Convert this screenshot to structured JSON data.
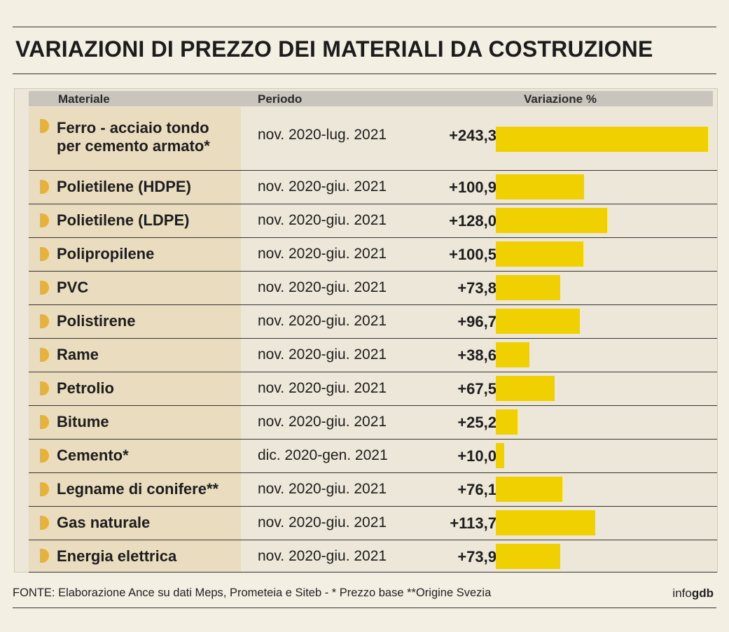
{
  "title": "VARIAZIONI DI PREZZO DEI MATERIALI DA COSTRUZIONE",
  "headers": {
    "material": "Materiale",
    "period": "Periodo",
    "variation": "Variazione %"
  },
  "colors": {
    "bar": "#f1d000",
    "bullet": "#e6b23a",
    "material_col": "#eadcbe",
    "header": "#c9c5bd"
  },
  "chart_data": {
    "type": "bar",
    "title": "VARIAZIONI DI PREZZO DEI MATERIALI DA COSTRUZIONE",
    "xlabel": "",
    "ylabel": "Variazione %",
    "categories": [
      "Ferro - acciaio tondo per cemento armato*",
      "Polietilene (HDPE)",
      "Polietilene (LDPE)",
      "Polipropilene",
      "PVC",
      "Polistirene",
      "Rame",
      "Petrolio",
      "Bitume",
      "Cemento*",
      "Legname di conifere**",
      "Gas naturale",
      "Energia elettrica"
    ],
    "values": [
      243.3,
      100.9,
      128.0,
      100.5,
      73.8,
      96.7,
      38.6,
      67.5,
      25.2,
      10.0,
      76.1,
      113.7,
      73.9
    ],
    "ylim": [
      0,
      243.3
    ],
    "rows": [
      {
        "material": [
          "Ferro - acciaio tondo",
          "per cemento armato*"
        ],
        "period": "nov. 2020-lug. 2021",
        "label": "+243,3",
        "value": 243.3
      },
      {
        "material": [
          "Polietilene (HDPE)"
        ],
        "period": "nov. 2020-giu. 2021",
        "label": "+100,9",
        "value": 100.9
      },
      {
        "material": [
          "Polietilene (LDPE)"
        ],
        "period": "nov. 2020-giu. 2021",
        "label": "+128,0",
        "value": 128.0
      },
      {
        "material": [
          "Polipropilene"
        ],
        "period": "nov. 2020-giu. 2021",
        "label": "+100,5",
        "value": 100.5
      },
      {
        "material": [
          "PVC"
        ],
        "period": "nov. 2020-giu. 2021",
        "label": "+73,8",
        "value": 73.8
      },
      {
        "material": [
          "Polistirene"
        ],
        "period": "nov. 2020-giu. 2021",
        "label": "+96,7",
        "value": 96.7
      },
      {
        "material": [
          "Rame"
        ],
        "period": "nov. 2020-giu. 2021",
        "label": "+38,6",
        "value": 38.6
      },
      {
        "material": [
          "Petrolio"
        ],
        "period": "nov. 2020-giu. 2021",
        "label": "+67,5",
        "value": 67.5
      },
      {
        "material": [
          "Bitume"
        ],
        "period": "nov. 2020-giu. 2021",
        "label": "+25,2",
        "value": 25.2
      },
      {
        "material": [
          "Cemento*"
        ],
        "period": "dic. 2020-gen. 2021",
        "label": "+10,0",
        "value": 10.0
      },
      {
        "material": [
          "Legname di conifere**"
        ],
        "period": "nov. 2020-giu. 2021",
        "label": "+76,1",
        "value": 76.1
      },
      {
        "material": [
          "Gas naturale"
        ],
        "period": "nov. 2020-giu. 2021",
        "label": "+113,7",
        "value": 113.7
      },
      {
        "material": [
          "Energia elettrica"
        ],
        "period": "nov. 2020-giu. 2021",
        "label": "+73,9",
        "value": 73.9
      }
    ]
  },
  "footer": {
    "source": "FONTE: Elaborazione Ance su dati Meps, Prometeia e Siteb  - * Prezzo base **Origine Svezia",
    "brand_prefix": "info",
    "brand_bold": "gdb"
  }
}
